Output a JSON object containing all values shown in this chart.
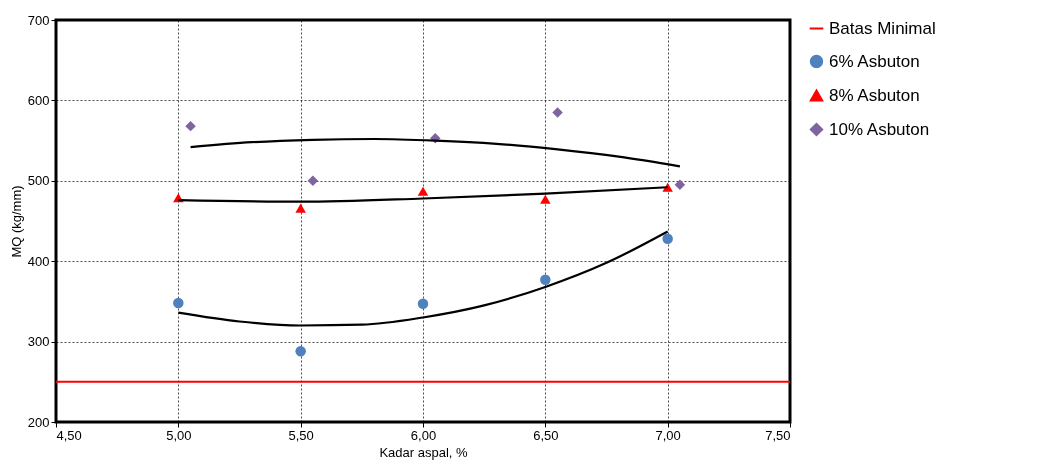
{
  "chart_data": {
    "type": "scatter",
    "xlabel": "Kadar aspal, %",
    "ylabel": "MQ (kg/mm)",
    "xlim": [
      4.5,
      7.5
    ],
    "xticks": [
      {
        "value": 4.5,
        "label": "4,50"
      },
      {
        "value": 5,
        "label": "5,00"
      },
      {
        "value": 5.5,
        "label": "5,50"
      },
      {
        "value": 6,
        "label": "6,00"
      },
      {
        "value": 6.5,
        "label": "6,50"
      },
      {
        "value": 7,
        "label": "7,00"
      },
      {
        "value": 7.5,
        "label": "7,50"
      }
    ],
    "ylim": [
      200,
      700
    ],
    "yticks": [
      200,
      300,
      400,
      500,
      600,
      700
    ],
    "grid": true,
    "legend": "right",
    "ref_lines": [
      {
        "axis": "y",
        "value": 250,
        "label": "Batas Minimal",
        "color": "#ff0000"
      }
    ],
    "series": [
      {
        "name": "6% Asbuton",
        "marker": "circle",
        "color": "#4f81bd",
        "x": [
          5,
          5.5,
          6,
          6.5,
          7
        ],
        "values": [
          348,
          288,
          347,
          377,
          428
        ]
      },
      {
        "name": "8% Asbuton",
        "marker": "triangle",
        "color": "#ff0000",
        "x": [
          5,
          5.5,
          6,
          6.5,
          7
        ],
        "values": [
          479,
          466,
          487,
          477,
          492
        ]
      },
      {
        "name": "10% Asbuton",
        "marker": "diamond",
        "color": "#8064a2",
        "x": [
          5.05,
          5.55,
          6.05,
          6.55,
          7.05
        ],
        "values": [
          568,
          500,
          553,
          585,
          495
        ]
      },
      {
        "type": "line",
        "color": "#000000",
        "x": [
          5,
          5.25,
          5.5,
          5.75,
          6,
          6.25,
          6.5,
          6.75,
          7
        ],
        "values": [
          336,
          325,
          320,
          321,
          330,
          345,
          368,
          398,
          437
        ]
      },
      {
        "type": "line",
        "color": "#000000",
        "x": [
          5,
          5.5,
          6,
          6.5,
          7
        ],
        "values": [
          476,
          474,
          478,
          484,
          492
        ]
      },
      {
        "type": "line",
        "color": "#000000",
        "x": [
          5.05,
          5.3,
          5.55,
          5.8,
          6.05,
          6.3,
          6.55,
          6.8,
          7.05
        ],
        "values": [
          542,
          548,
          551,
          552,
          550,
          546,
          539,
          530,
          518
        ]
      }
    ]
  }
}
